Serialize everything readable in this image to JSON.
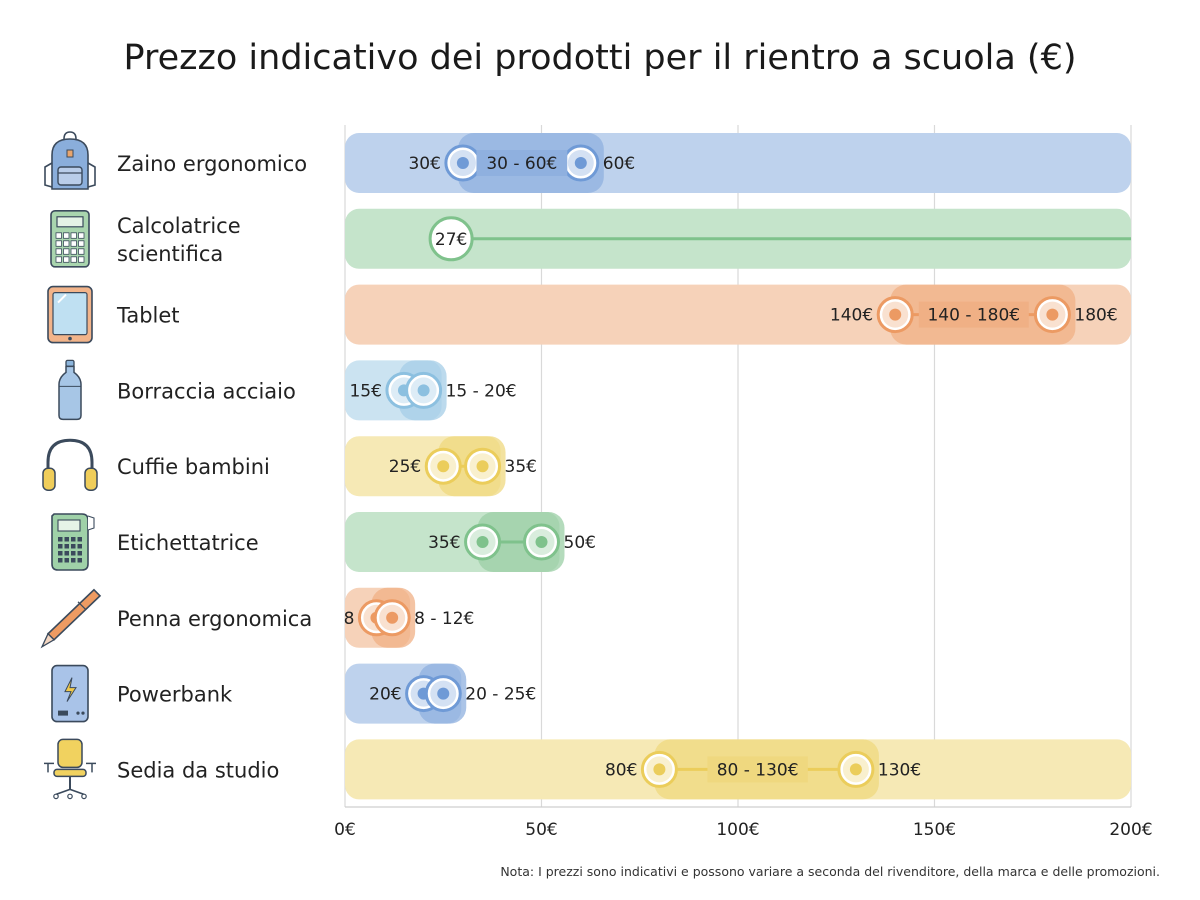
{
  "chart_data": {
    "type": "range-bar",
    "title": "Prezzo indicativo dei prodotti per il rientro a scuola (€)",
    "xlim": [
      0,
      200
    ],
    "x_ticks": [
      0,
      50,
      100,
      150,
      200
    ],
    "x_tick_labels": [
      "0€",
      "50€",
      "100€",
      "150€",
      "200€"
    ],
    "grid": true,
    "items": [
      {
        "name": "Zaino ergonomico",
        "icon": "backpack-icon",
        "min": 30,
        "max": 60,
        "min_label": "30€",
        "max_label": "60€",
        "range_label": "30 - 60€",
        "color": "#6f9ad6"
      },
      {
        "name": "Calcolatrice scientifica",
        "name_lines": [
          "Calcolatrice",
          "scientifica"
        ],
        "icon": "calculator-icon",
        "min": 27,
        "max": null,
        "min_label": "27€",
        "max_label": "",
        "range_label": "",
        "color": "#7fc28c"
      },
      {
        "name": "Tablet",
        "icon": "tablet-icon",
        "min": 140,
        "max": 180,
        "min_label": "140€",
        "max_label": "180€",
        "range_label": "140 - 180€",
        "color": "#ec9a63"
      },
      {
        "name": "Borraccia acciaio",
        "icon": "water-bottle-icon",
        "min": 15,
        "max": 20,
        "min_label": "15€",
        "max_label": "",
        "range_label": "15 - 20€",
        "color": "#8cc0e0"
      },
      {
        "name": "Cuffie bambini",
        "icon": "headphones-icon",
        "min": 25,
        "max": 35,
        "min_label": "25€",
        "max_label": "35€",
        "range_label": "",
        "color": "#ebcd5b"
      },
      {
        "name": "Etichettatrice",
        "icon": "label-maker-icon",
        "min": 35,
        "max": 50,
        "min_label": "35€",
        "max_label": "50€",
        "range_label": "",
        "color": "#7fc28c"
      },
      {
        "name": "Penna ergonomica",
        "icon": "pen-icon",
        "min": 8,
        "max": 12,
        "min_label": "8",
        "max_label": "",
        "range_label": "8 - 12€",
        "color": "#ec9a63"
      },
      {
        "name": "Powerbank",
        "icon": "powerbank-icon",
        "min": 20,
        "max": 25,
        "min_label": "20€",
        "max_label": "",
        "range_label": "20 - 25€",
        "color": "#6f9ad6"
      },
      {
        "name": "Sedia da studio",
        "icon": "desk-chair-icon",
        "min": 80,
        "max": 130,
        "min_label": "80€",
        "max_label": "130€",
        "range_label": "80 - 130€",
        "color": "#ebcd5b"
      }
    ]
  },
  "footer": {
    "note": "Nota: I prezzi sono indicativi e possono variare a seconda del rivenditore, della marca e delle promozioni."
  },
  "colors": {
    "blue": "#6f9ad6",
    "green": "#7fc28c",
    "orange": "#ec9a63",
    "lightblue": "#8cc0e0",
    "yellow": "#ebcd5b",
    "grid": "#d9d9d9"
  }
}
